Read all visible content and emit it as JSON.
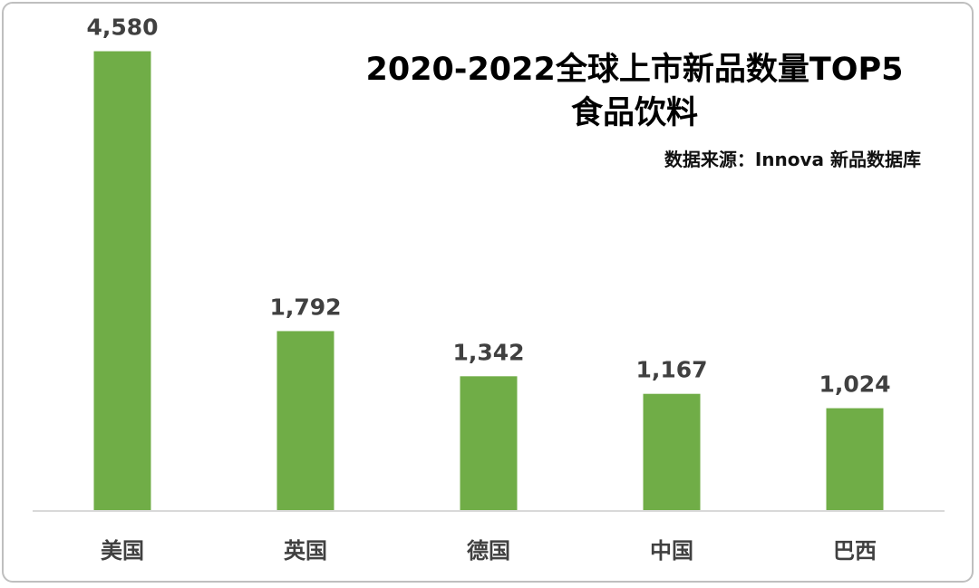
{
  "chart_data": {
    "type": "bar",
    "title": "2020-2022全球上市新品数量TOP5",
    "subtitle": "食品饮料",
    "source": "数据来源：Innova 新品数据库",
    "categories": [
      "美国",
      "英国",
      "德国",
      "中国",
      "巴西"
    ],
    "values": [
      4580,
      1792,
      1342,
      1167,
      1024
    ],
    "value_labels": [
      "4,580",
      "1,792",
      "1,342",
      "1,167",
      "1,024"
    ],
    "xlabel": "",
    "ylabel": "",
    "ylim": [
      0,
      5000
    ],
    "grid": false,
    "legend": "none",
    "bar_color": "#70ad47",
    "axis_color": "#d9d9d9"
  }
}
